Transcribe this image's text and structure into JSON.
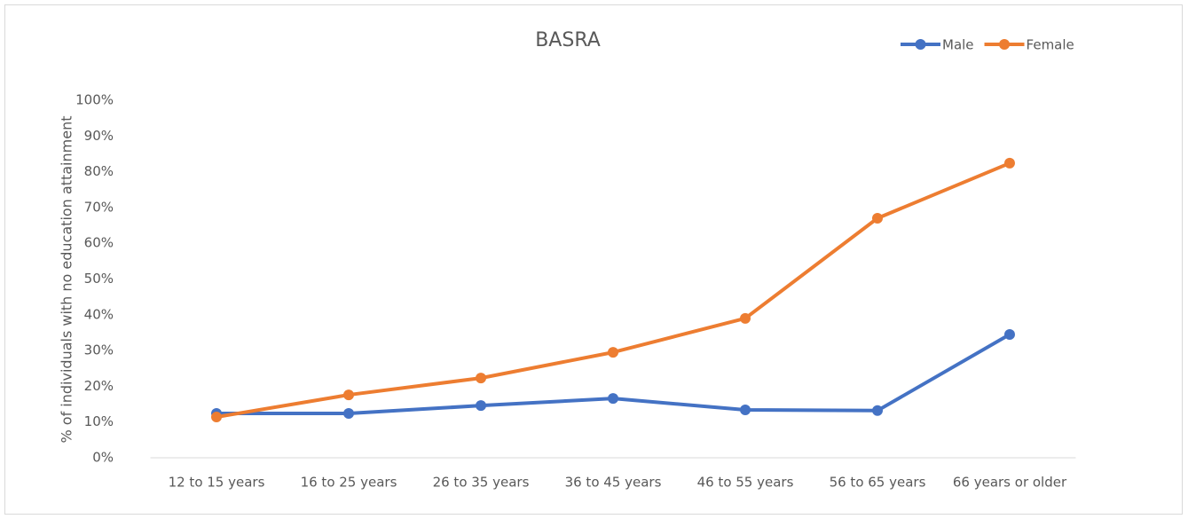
{
  "chart_data": {
    "type": "line",
    "title": "BASRA",
    "y_label": "% of individuals with no education attainment",
    "categories": [
      "12 to 15 years",
      "16 to 25 years",
      "26 to 35 years",
      "36 to 45 years",
      "46 to 55 years",
      "56 to 65 years",
      "66 years or older"
    ],
    "series": [
      {
        "name": "Male",
        "color": "#4472c4",
        "values": [
          12.4,
          12.4,
          14.6,
          16.6,
          13.4,
          13.2,
          34.5
        ]
      },
      {
        "name": "Female",
        "color": "#ed7d31",
        "values": [
          11.4,
          17.6,
          22.3,
          29.5,
          39,
          67,
          82.4
        ]
      }
    ],
    "ylim": [
      0,
      100
    ],
    "yticks": [
      {
        "value": 0,
        "label": "0%"
      },
      {
        "value": 10,
        "label": "10%"
      },
      {
        "value": 20,
        "label": "20%"
      },
      {
        "value": 30,
        "label": "30%"
      },
      {
        "value": 40,
        "label": "40%"
      },
      {
        "value": 50,
        "label": "50%"
      },
      {
        "value": 60,
        "label": "60%"
      },
      {
        "value": 70,
        "label": "70%"
      },
      {
        "value": 80,
        "label": "80%"
      },
      {
        "value": 90,
        "label": "90%"
      },
      {
        "value": 100,
        "label": "100%"
      }
    ],
    "grid": false,
    "legend": "top-right"
  }
}
